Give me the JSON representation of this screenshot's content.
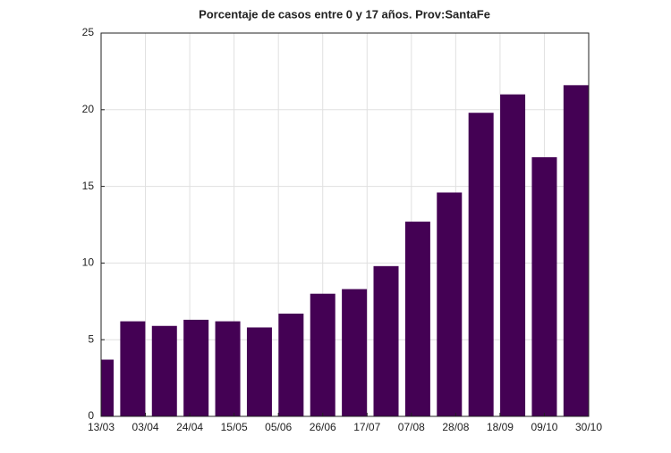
{
  "chart_data": {
    "type": "bar",
    "title": "Porcentaje de casos entre 0 y 17 años. Prov:SantaFe",
    "x": [
      "13/03",
      "28/03",
      "12/04",
      "27/04",
      "12/05",
      "27/05",
      "11/06",
      "26/06",
      "11/07",
      "26/07",
      "10/08",
      "25/08",
      "09/09",
      "24/09",
      "09/10",
      "24/10"
    ],
    "values": [
      3.7,
      6.2,
      5.9,
      6.3,
      6.2,
      5.8,
      6.7,
      8.0,
      8.3,
      9.8,
      12.7,
      14.6,
      19.8,
      21.0,
      16.9,
      21.6
    ],
    "color": "#440154",
    "xlim": [
      "13/03",
      "30/10"
    ],
    "xticks": [
      "13/03",
      "03/04",
      "24/04",
      "15/05",
      "05/06",
      "26/06",
      "17/07",
      "07/08",
      "28/08",
      "18/09",
      "09/10",
      "30/10"
    ],
    "ylim": [
      0,
      25
    ],
    "yticks": [
      0,
      5,
      10,
      15,
      20,
      25
    ],
    "grid": true
  }
}
